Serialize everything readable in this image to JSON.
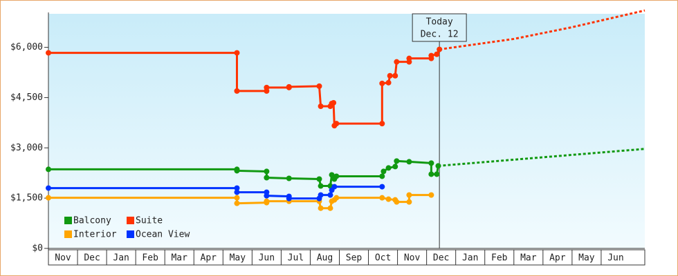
{
  "chart_data": {
    "type": "line",
    "step": true,
    "xlim": [
      0,
      20.5
    ],
    "xticks": [
      {
        "value": 0,
        "label": "Nov"
      },
      {
        "value": 1,
        "label": "Dec"
      },
      {
        "value": 2,
        "label": "Jan"
      },
      {
        "value": 3,
        "label": "Feb"
      },
      {
        "value": 4,
        "label": "Mar"
      },
      {
        "value": 5,
        "label": "Apr"
      },
      {
        "value": 6,
        "label": "May"
      },
      {
        "value": 7,
        "label": "Jun"
      },
      {
        "value": 8,
        "label": "Jul"
      },
      {
        "value": 9,
        "label": "Aug"
      },
      {
        "value": 10,
        "label": "Sep"
      },
      {
        "value": 11,
        "label": "Oct"
      },
      {
        "value": 12,
        "label": "Nov"
      },
      {
        "value": 13,
        "label": "Dec"
      },
      {
        "value": 14,
        "label": "Jan"
      },
      {
        "value": 15,
        "label": "Feb"
      },
      {
        "value": 16,
        "label": "Mar"
      },
      {
        "value": 17,
        "label": "Apr"
      },
      {
        "value": 18,
        "label": "May"
      },
      {
        "value": 19,
        "label": "Jun"
      }
    ],
    "ylim": [
      0,
      7000
    ],
    "yticks": [
      {
        "value": 0,
        "label": "$0"
      },
      {
        "value": 1500,
        "label": "$1,500"
      },
      {
        "value": 3000,
        "label": "$3,000"
      },
      {
        "value": 4500,
        "label": "$4,500"
      },
      {
        "value": 6000,
        "label": "$6,000"
      }
    ],
    "annotation": {
      "text": [
        "Today",
        "Dec. 12"
      ],
      "x": 13.44
    },
    "legend": "lower left",
    "series": [
      {
        "name": "Balcony",
        "color": "#119911",
        "x": [
          0,
          6.48,
          6.48,
          7.5,
          7.5,
          8.27,
          9.31,
          9.36,
          9.69,
          9.74,
          9.8,
          9.83,
          9.9,
          11.47,
          11.52,
          11.69,
          11.92,
          11.97,
          12.4,
          13.16,
          13.16,
          13.35,
          13.4
        ],
        "values": [
          2359,
          2359,
          2317,
          2297,
          2110,
          2090,
          2069,
          1862,
          1862,
          2193,
          2110,
          2069,
          2152,
          2152,
          2297,
          2400,
          2441,
          2607,
          2586,
          2545,
          2214,
          2214,
          2462
        ],
        "projection": {
          "x": [
            13.4,
            20.5
          ],
          "values": [
            2462,
            2969
          ]
        }
      },
      {
        "name": "Suite",
        "color": "#ff3300",
        "x": [
          0,
          6.48,
          6.48,
          7.5,
          7.5,
          8.27,
          8.27,
          9.31,
          9.36,
          9.69,
          9.74,
          9.8,
          9.83,
          9.9,
          11.47,
          11.47,
          11.69,
          11.74,
          11.92,
          11.97,
          12.4,
          12.4,
          13.16,
          13.16,
          13.35,
          13.44
        ],
        "values": [
          5835,
          5835,
          4697,
          4697,
          4800,
          4800,
          4820,
          4841,
          4241,
          4241,
          4324,
          4345,
          3662,
          3724,
          3724,
          4924,
          4945,
          5152,
          5152,
          5566,
          5566,
          5669,
          5669,
          5752,
          5793,
          5938
        ],
        "projection": {
          "x": [
            13.44,
            16,
            18,
            20.5
          ],
          "values": [
            5938,
            6250,
            6600,
            7100
          ]
        }
      },
      {
        "name": "Interior",
        "color": "#ffa500",
        "x": [
          0,
          6.48,
          6.48,
          7.5,
          7.5,
          8.27,
          9.31,
          9.36,
          9.69,
          9.74,
          9.83,
          9.9,
          11.47,
          11.69,
          11.92,
          11.97,
          12.4,
          12.4,
          13.16
        ],
        "values": [
          1510,
          1510,
          1345,
          1366,
          1407,
          1407,
          1407,
          1200,
          1200,
          1407,
          1448,
          1510,
          1510,
          1469,
          1448,
          1386,
          1386,
          1593,
          1593
        ]
      },
      {
        "name": "Ocean View",
        "color": "#0033ff",
        "x": [
          0,
          6.48,
          6.48,
          7.5,
          7.5,
          8.27,
          8.27,
          9.31,
          9.36,
          9.69,
          9.74,
          9.83,
          11.47
        ],
        "values": [
          1800,
          1800,
          1676,
          1676,
          1572,
          1552,
          1490,
          1490,
          1593,
          1593,
          1738,
          1841,
          1841
        ]
      }
    ]
  }
}
